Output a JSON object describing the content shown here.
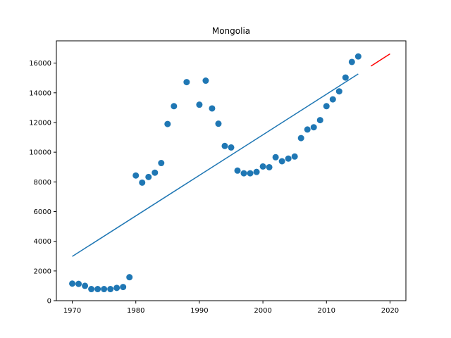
{
  "chart_data": {
    "type": "scatter",
    "title": "Mongolia",
    "xlabel": "",
    "ylabel": "",
    "xlim": [
      1967.5,
      2022.5
    ],
    "ylim": [
      0,
      17500
    ],
    "xticks": [
      1970,
      1980,
      1990,
      2000,
      2010,
      2020
    ],
    "yticks": [
      0,
      2000,
      4000,
      6000,
      8000,
      10000,
      12000,
      14000,
      16000
    ],
    "grid": false,
    "legend": "none",
    "colors": {
      "points": "#1f77b4",
      "fit": "#1f77b4",
      "forecast": "#ff0000",
      "axes": "#000000"
    },
    "points": {
      "x": [
        1970,
        1971,
        1972,
        1973,
        1974,
        1975,
        1976,
        1977,
        1978,
        1979,
        1980,
        1981,
        1982,
        1983,
        1984,
        1985,
        1986,
        1988,
        1990,
        1991,
        1992,
        1993,
        1994,
        1995,
        1996,
        1997,
        1998,
        1999,
        2000,
        2001,
        2002,
        2003,
        2004,
        2005,
        2006,
        2007,
        2008,
        2009,
        2010,
        2011,
        2012,
        2013,
        2014,
        2015
      ],
      "y": [
        1150,
        1130,
        1000,
        780,
        780,
        780,
        780,
        860,
        920,
        1580,
        8430,
        7950,
        8330,
        8620,
        9270,
        11900,
        13100,
        14720,
        13200,
        14820,
        12950,
        11920,
        10420,
        10320,
        8760,
        8580,
        8580,
        8670,
        9040,
        8990,
        9660,
        9390,
        9570,
        9710,
        10950,
        11530,
        11680,
        12160,
        13100,
        13560,
        14100,
        15030,
        16080,
        16450
      ]
    },
    "fit_line": {
      "x": [
        1970,
        2015
      ],
      "y": [
        2980,
        15270
      ]
    },
    "forecast_line": {
      "x": [
        2017,
        2020
      ],
      "y": [
        15800,
        16620
      ]
    }
  }
}
